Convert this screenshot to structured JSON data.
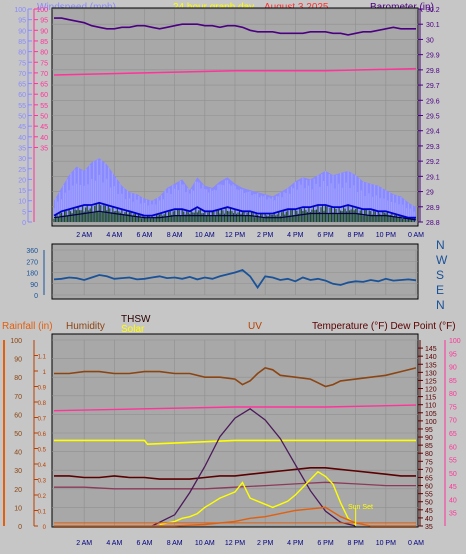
{
  "header": {
    "windspeed_label": "Windspeed (mph)",
    "title": "24 hour graph day",
    "date": "August 3 2025",
    "barometer_label": "Barometer (in)"
  },
  "mid_header": {
    "rainfall_label": "Rainfall (in)",
    "humidity_label": "Humidity",
    "thsw_label": "THSW",
    "solar_label": "Solar",
    "uv_label": "UV",
    "temp_label": "Temperature (°F) Dew Point (°F)"
  },
  "colors": {
    "windspeed": "#8a8aff",
    "title": "#ffff00",
    "date": "#ff3030",
    "barometer": "#4b0082",
    "pink": "#ff3399",
    "dir": "#1a5299",
    "rain": "#e06010",
    "humidity": "#8b4513",
    "thsw": "#2b0000",
    "solar": "#ffff00",
    "uv": "#b84000",
    "temp": "#5a0000",
    "dew": "#ff3399",
    "wind_blue": "#0000cc",
    "wind_green": "#1a4a1a"
  },
  "chart_data": [
    {
      "type": "line",
      "name": "wind-and-barometer",
      "x_ticks": [
        "2 AM",
        "4 AM",
        "6 AM",
        "8 AM",
        "10 AM",
        "12 PM",
        "2 PM",
        "4 PM",
        "6 PM",
        "8 PM",
        "10 PM",
        "0 AM"
      ],
      "left_axis": {
        "label": "Windspeed (mph)",
        "ylim": [
          0,
          100
        ],
        "ticks": [
          0,
          5,
          10,
          15,
          20,
          25,
          30,
          35,
          40,
          45,
          50,
          55,
          60,
          65,
          70,
          75,
          80,
          85,
          90,
          95,
          100
        ]
      },
      "pink_axis": {
        "ylim": [
          0,
          100
        ],
        "ticks": [
          35,
          40,
          45,
          50,
          55,
          60,
          65,
          70,
          75,
          80,
          85,
          90,
          95,
          100
        ]
      },
      "right_axis": {
        "label": "Barometer (in)",
        "ylim": [
          28.8,
          30.2
        ],
        "ticks": [
          "28.8",
          "28.9",
          "29",
          "29.1",
          "29.2",
          "29.3",
          "29.4",
          "29.5",
          "29.6",
          "29.7",
          "29.8",
          "29.9",
          "30",
          "30.1",
          "30.2"
        ]
      },
      "series": [
        {
          "kind": "barometer",
          "axis": "right",
          "x": [
            0,
            0.5,
            1,
            1.5,
            2,
            2.5,
            3,
            3.5,
            4,
            4.5,
            5,
            5.5,
            6,
            6.5,
            7,
            7.5,
            8,
            8.5,
            9,
            9.5,
            10,
            10.5,
            11,
            11.5,
            12,
            12.5,
            13,
            13.5,
            14,
            14.5,
            15,
            15.5,
            16,
            16.5,
            17,
            17.5,
            18,
            18.5,
            19,
            19.5,
            20,
            20.5,
            21,
            21.5,
            22,
            22.5,
            23,
            23.5,
            24
          ],
          "values": [
            30.14,
            30.14,
            30.13,
            30.12,
            30.11,
            30.09,
            30.08,
            30.07,
            30.07,
            30.08,
            30.08,
            30.09,
            30.09,
            30.08,
            30.07,
            30.08,
            30.09,
            30.1,
            30.1,
            30.1,
            30.09,
            30.09,
            30.08,
            30.09,
            30.09,
            30.08,
            30.06,
            30.05,
            30.05,
            30.05,
            30.04,
            30.04,
            30.04,
            30.04,
            30.05,
            30.05,
            30.05,
            30.04,
            30.04,
            30.03,
            30.04,
            30.05,
            30.05,
            30.06,
            30.07,
            30.08,
            30.07,
            30.07,
            30.07
          ]
        },
        {
          "kind": "dewline",
          "axis": "pink",
          "x": [
            0,
            6,
            12,
            18,
            24
          ],
          "values": [
            69,
            70,
            71,
            71,
            72
          ]
        },
        {
          "kind": "gust",
          "axis": "left",
          "x": [
            0,
            0.5,
            1,
            1.5,
            2,
            2.5,
            3,
            3.5,
            4,
            4.5,
            5,
            5.5,
            6,
            6.5,
            7,
            7.5,
            8,
            8.5,
            9,
            9.5,
            10,
            10.5,
            11,
            11.5,
            12,
            12.5,
            13,
            13.5,
            14,
            14.5,
            15,
            15.5,
            16,
            16.5,
            17,
            17.5,
            18,
            18.5,
            19,
            19.5,
            20,
            20.5,
            21,
            21.5,
            22,
            22.5,
            23,
            23.5,
            24
          ],
          "values": [
            10,
            16,
            22,
            26,
            24,
            28,
            30,
            27,
            22,
            17,
            14,
            13,
            11,
            10,
            12,
            16,
            18,
            20,
            15,
            21,
            17,
            16,
            19,
            21,
            18,
            16,
            15,
            14,
            13,
            12,
            14,
            16,
            19,
            21,
            20,
            22,
            24,
            22,
            23,
            24,
            22,
            19,
            18,
            17,
            15,
            13,
            12,
            9,
            7
          ]
        },
        {
          "kind": "wind",
          "axis": "left",
          "x": [
            0,
            0.5,
            1,
            1.5,
            2,
            2.5,
            3,
            3.5,
            4,
            4.5,
            5,
            5.5,
            6,
            6.5,
            7,
            7.5,
            8,
            8.5,
            9,
            9.5,
            10,
            10.5,
            11,
            11.5,
            12,
            12.5,
            13,
            13.5,
            14,
            14.5,
            15,
            15.5,
            16,
            16.5,
            17,
            17.5,
            18,
            18.5,
            19,
            19.5,
            20,
            20.5,
            21,
            21.5,
            22,
            22.5,
            23,
            23.5,
            24
          ],
          "values": [
            3,
            5,
            6,
            7,
            8,
            8,
            9,
            8,
            7,
            6,
            5,
            4,
            3,
            3,
            4,
            5,
            6,
            6,
            5,
            7,
            5,
            5,
            6,
            7,
            6,
            5,
            5,
            4,
            4,
            4,
            5,
            6,
            6,
            7,
            7,
            8,
            8,
            7,
            7,
            8,
            7,
            6,
            6,
            5,
            5,
            4,
            3,
            2,
            2
          ]
        },
        {
          "kind": "avgwind",
          "axis": "left",
          "x": [
            0,
            1,
            2,
            3,
            4,
            5,
            6,
            7,
            8,
            9,
            10,
            11,
            12,
            13,
            14,
            15,
            16,
            17,
            18,
            19,
            20,
            21,
            22,
            23,
            24
          ],
          "values": [
            2,
            3,
            4,
            5,
            4,
            3,
            2,
            2,
            3,
            3,
            3,
            3,
            3,
            3,
            2,
            2,
            3,
            4,
            4,
            4,
            4,
            3,
            3,
            2,
            1
          ]
        }
      ]
    },
    {
      "type": "line",
      "name": "wind-direction",
      "ylim": [
        0,
        360
      ],
      "ticks": [
        0,
        90,
        180,
        270,
        360
      ],
      "right_labels": [
        "N",
        "W",
        "S",
        "E",
        "N"
      ],
      "x": [
        0,
        0.5,
        1,
        1.5,
        2,
        2.5,
        3,
        3.5,
        4,
        4.5,
        5,
        5.5,
        6,
        6.5,
        7,
        7.5,
        8,
        8.5,
        9,
        9.5,
        10,
        10.5,
        11,
        11.5,
        12,
        12.5,
        13,
        13.5,
        14,
        14.5,
        15,
        15.5,
        16,
        16.5,
        17,
        17.5,
        18,
        18.5,
        19,
        19.5,
        20,
        20.5,
        21,
        21.5,
        22,
        22.5,
        23,
        23.5,
        24
      ],
      "values": [
        125,
        130,
        140,
        135,
        120,
        140,
        160,
        150,
        130,
        135,
        140,
        125,
        130,
        140,
        150,
        135,
        140,
        130,
        145,
        125,
        140,
        130,
        150,
        165,
        180,
        200,
        150,
        60,
        150,
        140,
        120,
        130,
        110,
        140,
        120,
        130,
        115,
        90,
        80,
        100,
        110,
        105,
        120,
        110,
        130,
        115,
        120,
        125,
        118
      ]
    },
    {
      "type": "line",
      "name": "weather-lower",
      "x_ticks": [
        "2 AM",
        "4 AM",
        "6 AM",
        "8 AM",
        "10 AM",
        "12 PM",
        "2 PM",
        "4 PM",
        "6 PM",
        "8 PM",
        "10 PM",
        "0 AM"
      ],
      "humidity_axis": {
        "ylim": [
          0,
          100
        ],
        "ticks": [
          0,
          10,
          20,
          30,
          40,
          50,
          60,
          70,
          80,
          90,
          100
        ]
      },
      "rain_axis": {
        "ylim": [
          0,
          1.2
        ],
        "ticks": [
          "0",
          "0.1",
          "0.2",
          "0.3",
          "0.4",
          "0.5",
          "0.6",
          "0.7",
          "0.8",
          "0.9",
          "1",
          "1.1"
        ]
      },
      "temp_axis": {
        "ylim": [
          35,
          150
        ],
        "ticks": [
          35,
          40,
          45,
          50,
          55,
          60,
          65,
          70,
          75,
          80,
          85,
          90,
          95,
          100,
          105,
          110,
          115,
          120,
          125,
          130,
          135,
          140,
          145
        ]
      },
      "dew_axis": {
        "ylim": [
          30,
          100
        ],
        "ticks": [
          35,
          40,
          45,
          50,
          55,
          60,
          65,
          70,
          75,
          80,
          85,
          90,
          95,
          100
        ]
      },
      "annotations": [
        "Sun Set"
      ],
      "series": [
        {
          "kind": "humidity",
          "axis": "humidity",
          "x": [
            0,
            1,
            2,
            3,
            4,
            5,
            6,
            7,
            8,
            9,
            10,
            11,
            12,
            12.5,
            13,
            13.5,
            14,
            14.5,
            15,
            16,
            17,
            17.5,
            18,
            18.5,
            19,
            20,
            21,
            22,
            23,
            24
          ],
          "values": [
            82,
            82,
            83,
            83,
            82,
            82,
            83,
            83,
            82,
            82,
            80,
            80,
            79,
            76,
            78,
            82,
            85,
            84,
            81,
            80,
            79,
            77,
            75,
            76,
            78,
            79,
            80,
            81,
            83,
            85
          ]
        },
        {
          "kind": "dewline",
          "axis": "humidity",
          "x": [
            0,
            6,
            12,
            18,
            24
          ],
          "values": [
            62,
            63,
            64,
            64,
            65
          ]
        },
        {
          "kind": "thsw",
          "axis": "temp",
          "x": [
            0,
            1,
            2,
            3,
            4,
            5,
            6,
            7,
            8,
            9,
            10,
            11,
            12,
            13,
            14,
            15,
            16,
            17,
            18,
            19,
            20,
            21,
            22,
            23,
            24
          ],
          "values": [
            66,
            66,
            65,
            65,
            66,
            65,
            65,
            64,
            64,
            64,
            65,
            66,
            66,
            67,
            68,
            69,
            70,
            71,
            71,
            70,
            69,
            68,
            67,
            66,
            66
          ]
        },
        {
          "kind": "dewpoint",
          "axis": "temp",
          "x": [
            0,
            2,
            4,
            6,
            8,
            10,
            12,
            14,
            16,
            18,
            20,
            22,
            24
          ],
          "values": [
            59,
            59,
            58,
            58,
            58,
            58,
            59,
            60,
            61,
            62,
            61,
            60,
            60
          ]
        },
        {
          "kind": "arc",
          "axis": "humidity",
          "x": [
            6.5,
            8,
            9,
            10,
            11,
            12,
            13,
            14,
            15,
            16,
            17,
            18,
            19,
            20
          ],
          "values": [
            0,
            6,
            18,
            32,
            48,
            58,
            63,
            57,
            47,
            33,
            19,
            8,
            2,
            0
          ]
        },
        {
          "kind": "solar",
          "axis": "rain",
          "x": [
            7,
            8,
            8.5,
            9,
            9.5,
            10,
            10.5,
            11,
            11.5,
            12,
            12.5,
            13,
            13.5,
            14,
            14.5,
            15,
            15.5,
            16,
            16.5,
            17,
            17.5,
            18,
            18.5,
            19,
            19.5,
            20
          ],
          "values": [
            0.01,
            0.03,
            0.05,
            0.06,
            0.08,
            0.12,
            0.15,
            0.18,
            0.2,
            0.22,
            0.28,
            0.18,
            0.16,
            0.14,
            0.12,
            0.14,
            0.16,
            0.2,
            0.25,
            0.3,
            0.35,
            0.32,
            0.27,
            0.15,
            0.05,
            0.01
          ]
        },
        {
          "kind": "uv",
          "axis": "rain",
          "x": [
            0,
            8,
            10,
            12,
            13,
            14,
            15,
            16,
            17,
            18,
            19,
            20,
            21,
            24
          ],
          "values": [
            0,
            0,
            0.01,
            0.03,
            0.05,
            0.06,
            0.08,
            0.1,
            0.11,
            0.12,
            0.06,
            0.02,
            0,
            0
          ]
        },
        {
          "kind": "rain",
          "axis": "rain",
          "x": [
            0,
            24
          ],
          "values": [
            0.02,
            0.02
          ]
        },
        {
          "kind": "yellowflat",
          "axis": "humidity",
          "x": [
            0,
            6,
            6.2,
            12,
            18,
            24
          ],
          "values": [
            46,
            46,
            44,
            46,
            46,
            46
          ]
        }
      ]
    }
  ]
}
